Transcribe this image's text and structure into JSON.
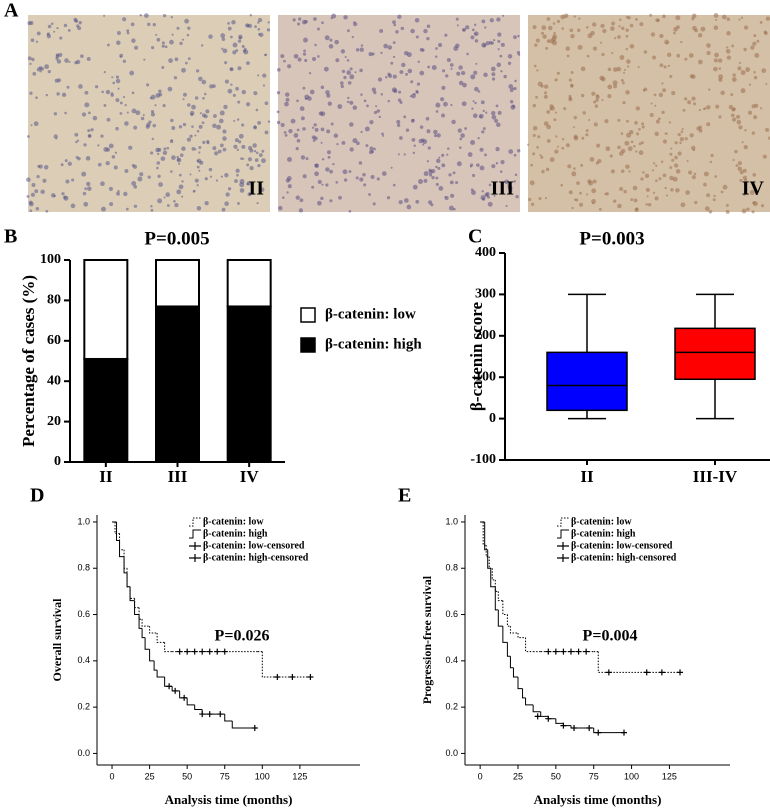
{
  "images": {
    "panel": "A",
    "labels": [
      "II",
      "III",
      "IV"
    ]
  },
  "chart_data": [
    {
      "type": "bar",
      "stacked": true,
      "panel": "B",
      "title": "P=0.005",
      "ylabel": "Percentage of cases (%)",
      "categories": [
        "II",
        "III",
        "IV"
      ],
      "series": [
        {
          "name": "β-catenin: low",
          "color": "#ffffff",
          "values": [
            49,
            23,
            23
          ]
        },
        {
          "name": "β-catenin: high",
          "color": "#000000",
          "values": [
            51,
            77,
            77
          ]
        }
      ],
      "ylim": [
        0,
        100
      ],
      "yticks": [
        0,
        20,
        40,
        60,
        80,
        100
      ]
    },
    {
      "type": "box",
      "panel": "C",
      "title": "P=0.003",
      "ylabel": "β-catenin score",
      "categories": [
        "II",
        "III-IV"
      ],
      "boxes": [
        {
          "min": 0,
          "q1": 20,
          "median": 80,
          "q3": 160,
          "max": 300,
          "color": "#0000ff"
        },
        {
          "min": 0,
          "q1": 95,
          "median": 160,
          "q3": 218,
          "max": 300,
          "color": "#ff0000"
        }
      ],
      "ylim": [
        -100,
        400
      ],
      "yticks": [
        -100,
        0,
        100,
        200,
        300,
        400
      ]
    },
    {
      "type": "step",
      "panel": "D",
      "annotation": "P=0.026",
      "ylabel": "Overall survival",
      "xlabel": "Analysis time (months)",
      "series": [
        {
          "name": "β-catenin: low",
          "style": "dotted",
          "x": [
            0,
            2,
            5,
            8,
            10,
            12,
            15,
            18,
            20,
            25,
            30,
            35,
            40,
            97,
            100,
            132
          ],
          "y": [
            1,
            0.95,
            0.88,
            0.8,
            0.72,
            0.67,
            0.63,
            0.58,
            0.55,
            0.52,
            0.48,
            0.44,
            0.44,
            0.44,
            0.33,
            0.33
          ]
        },
        {
          "name": "β-catenin: high",
          "style": "solid",
          "x": [
            0,
            3,
            5,
            8,
            10,
            12,
            15,
            18,
            20,
            22,
            25,
            28,
            30,
            35,
            40,
            45,
            50,
            55,
            60,
            70,
            75,
            80,
            95
          ],
          "y": [
            1,
            0.92,
            0.85,
            0.78,
            0.72,
            0.66,
            0.6,
            0.54,
            0.5,
            0.45,
            0.4,
            0.36,
            0.33,
            0.29,
            0.27,
            0.24,
            0.21,
            0.19,
            0.17,
            0.17,
            0.14,
            0.11,
            0.11
          ]
        },
        {
          "name": "β-catenin: low-censored",
          "style": "censored",
          "x": [
            45,
            50,
            55,
            60,
            65,
            70,
            75,
            110,
            120,
            132
          ],
          "y": [
            0.44,
            0.44,
            0.44,
            0.44,
            0.44,
            0.44,
            0.44,
            0.33,
            0.33,
            0.33
          ]
        },
        {
          "name": "β-catenin: high-censored",
          "style": "censored",
          "x": [
            38,
            42,
            48,
            60,
            65,
            72,
            95
          ],
          "y": [
            0.29,
            0.27,
            0.24,
            0.17,
            0.17,
            0.17,
            0.11
          ]
        }
      ],
      "xlim": [
        -10,
        165
      ],
      "xticks": [
        0,
        25,
        50,
        75,
        100,
        125
      ],
      "ylim": [
        -0.05,
        1.03
      ],
      "yticks": [
        {
          "value": 0,
          "label": "0.0"
        },
        {
          "value": 0.2,
          "label": "0.2"
        },
        {
          "value": 0.4,
          "label": "0.4"
        },
        {
          "value": 0.6,
          "label": "0.6"
        },
        {
          "value": 0.8,
          "label": "0.8"
        },
        {
          "value": 1,
          "label": "1.0"
        }
      ]
    },
    {
      "type": "step",
      "panel": "E",
      "annotation": "P=0.004",
      "ylabel": "Progression-free survival",
      "xlabel": "Analysis time (months)",
      "series": [
        {
          "name": "β-catenin: low",
          "style": "dotted",
          "x": [
            0,
            2,
            4,
            6,
            8,
            10,
            12,
            15,
            18,
            20,
            25,
            30,
            35,
            40,
            75,
            78,
            132
          ],
          "y": [
            1,
            0.9,
            0.85,
            0.8,
            0.75,
            0.7,
            0.66,
            0.6,
            0.55,
            0.52,
            0.5,
            0.44,
            0.44,
            0.44,
            0.44,
            0.35,
            0.35
          ]
        },
        {
          "name": "β-catenin: high",
          "style": "solid",
          "x": [
            0,
            3,
            5,
            7,
            10,
            12,
            15,
            18,
            20,
            22,
            25,
            28,
            30,
            35,
            40,
            45,
            50,
            55,
            60,
            70,
            75,
            95
          ],
          "y": [
            1,
            0.88,
            0.8,
            0.72,
            0.62,
            0.55,
            0.48,
            0.42,
            0.37,
            0.33,
            0.28,
            0.24,
            0.21,
            0.18,
            0.16,
            0.15,
            0.13,
            0.12,
            0.11,
            0.11,
            0.09,
            0.09
          ]
        },
        {
          "name": "β-catenin: low-censored",
          "style": "censored",
          "x": [
            45,
            50,
            55,
            60,
            65,
            70,
            85,
            110,
            120,
            132
          ],
          "y": [
            0.44,
            0.44,
            0.44,
            0.44,
            0.44,
            0.44,
            0.35,
            0.35,
            0.35,
            0.35
          ]
        },
        {
          "name": "β-catenin: high-censored",
          "style": "censored",
          "x": [
            38,
            45,
            55,
            62,
            72,
            78,
            95
          ],
          "y": [
            0.16,
            0.15,
            0.12,
            0.11,
            0.11,
            0.09,
            0.09
          ]
        }
      ],
      "xlim": [
        -10,
        165
      ],
      "xticks": [
        0,
        25,
        50,
        75,
        100,
        125
      ],
      "ylim": [
        -0.05,
        1.03
      ],
      "yticks": [
        {
          "value": 0,
          "label": "0.0"
        },
        {
          "value": 0.2,
          "label": "0.2"
        },
        {
          "value": 0.4,
          "label": "0.4"
        },
        {
          "value": 0.6,
          "label": "0.6"
        },
        {
          "value": 0.8,
          "label": "0.8"
        },
        {
          "value": 1,
          "label": "1.0"
        }
      ]
    }
  ]
}
